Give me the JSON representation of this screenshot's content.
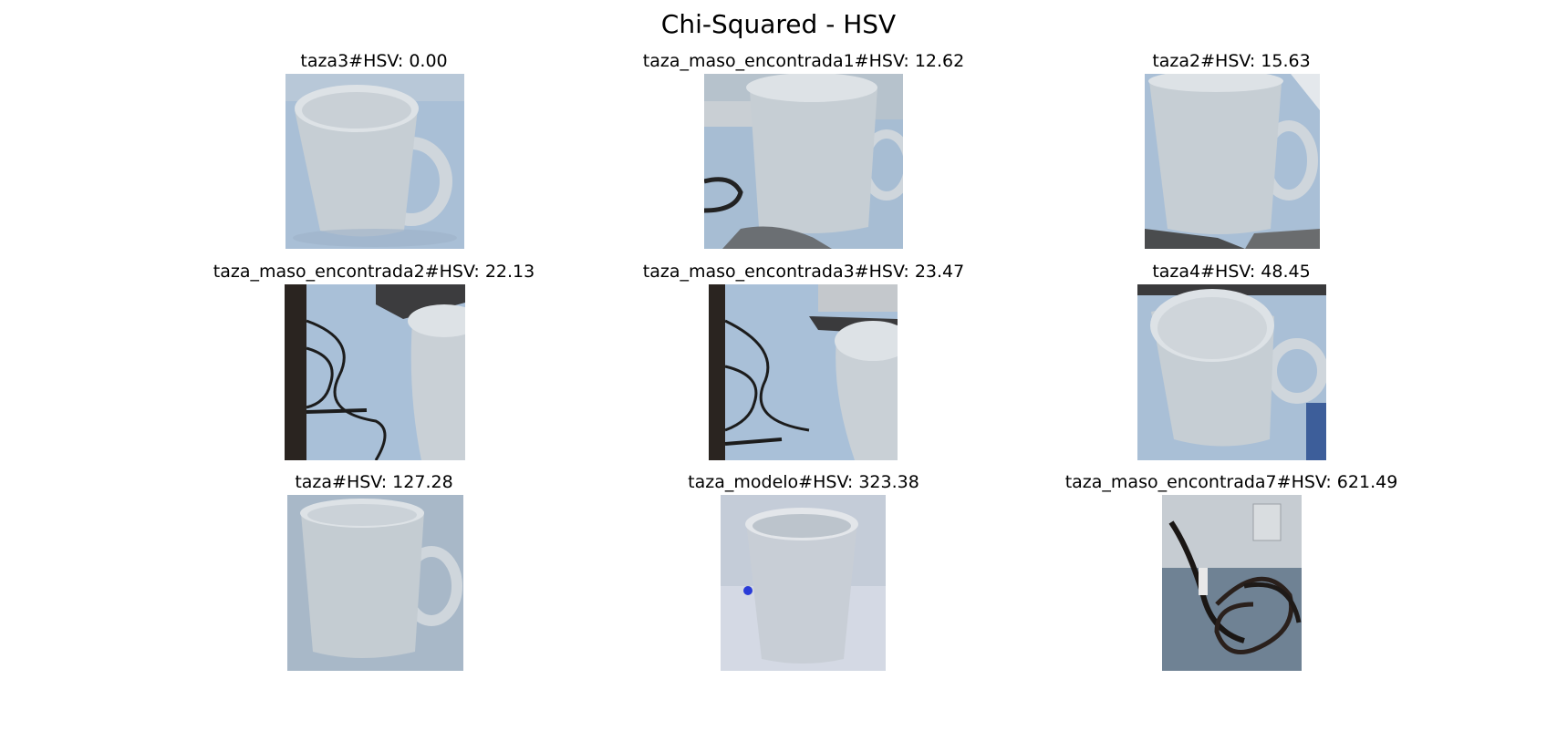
{
  "figure": {
    "title": "Chi-Squared - HSV"
  },
  "panels": [
    {
      "label": "taza3#HSV: 0.00",
      "picture": "white-mug-handle-right"
    },
    {
      "label": "taza_maso_encontrada1#HSV: 12.62",
      "picture": "white-mug-with-cable-left"
    },
    {
      "label": "taza2#HSV: 15.63",
      "picture": "white-mug-handle-right"
    },
    {
      "label": "taza_maso_encontrada2#HSV: 22.13",
      "picture": "cables-and-partial-mug"
    },
    {
      "label": "taza_maso_encontrada3#HSV: 23.47",
      "picture": "cables-and-partial-mug"
    },
    {
      "label": "taza4#HSV: 48.45",
      "picture": "white-mug-top-view"
    },
    {
      "label": "taza#HSV: 127.28",
      "picture": "white-mug-handle-right"
    },
    {
      "label": "taza_modelo#HSV: 323.38",
      "picture": "white-cup-no-handle"
    },
    {
      "label": "taza_maso_encontrada7#HSV: 621.49",
      "picture": "dark-cables-on-wall"
    }
  ]
}
